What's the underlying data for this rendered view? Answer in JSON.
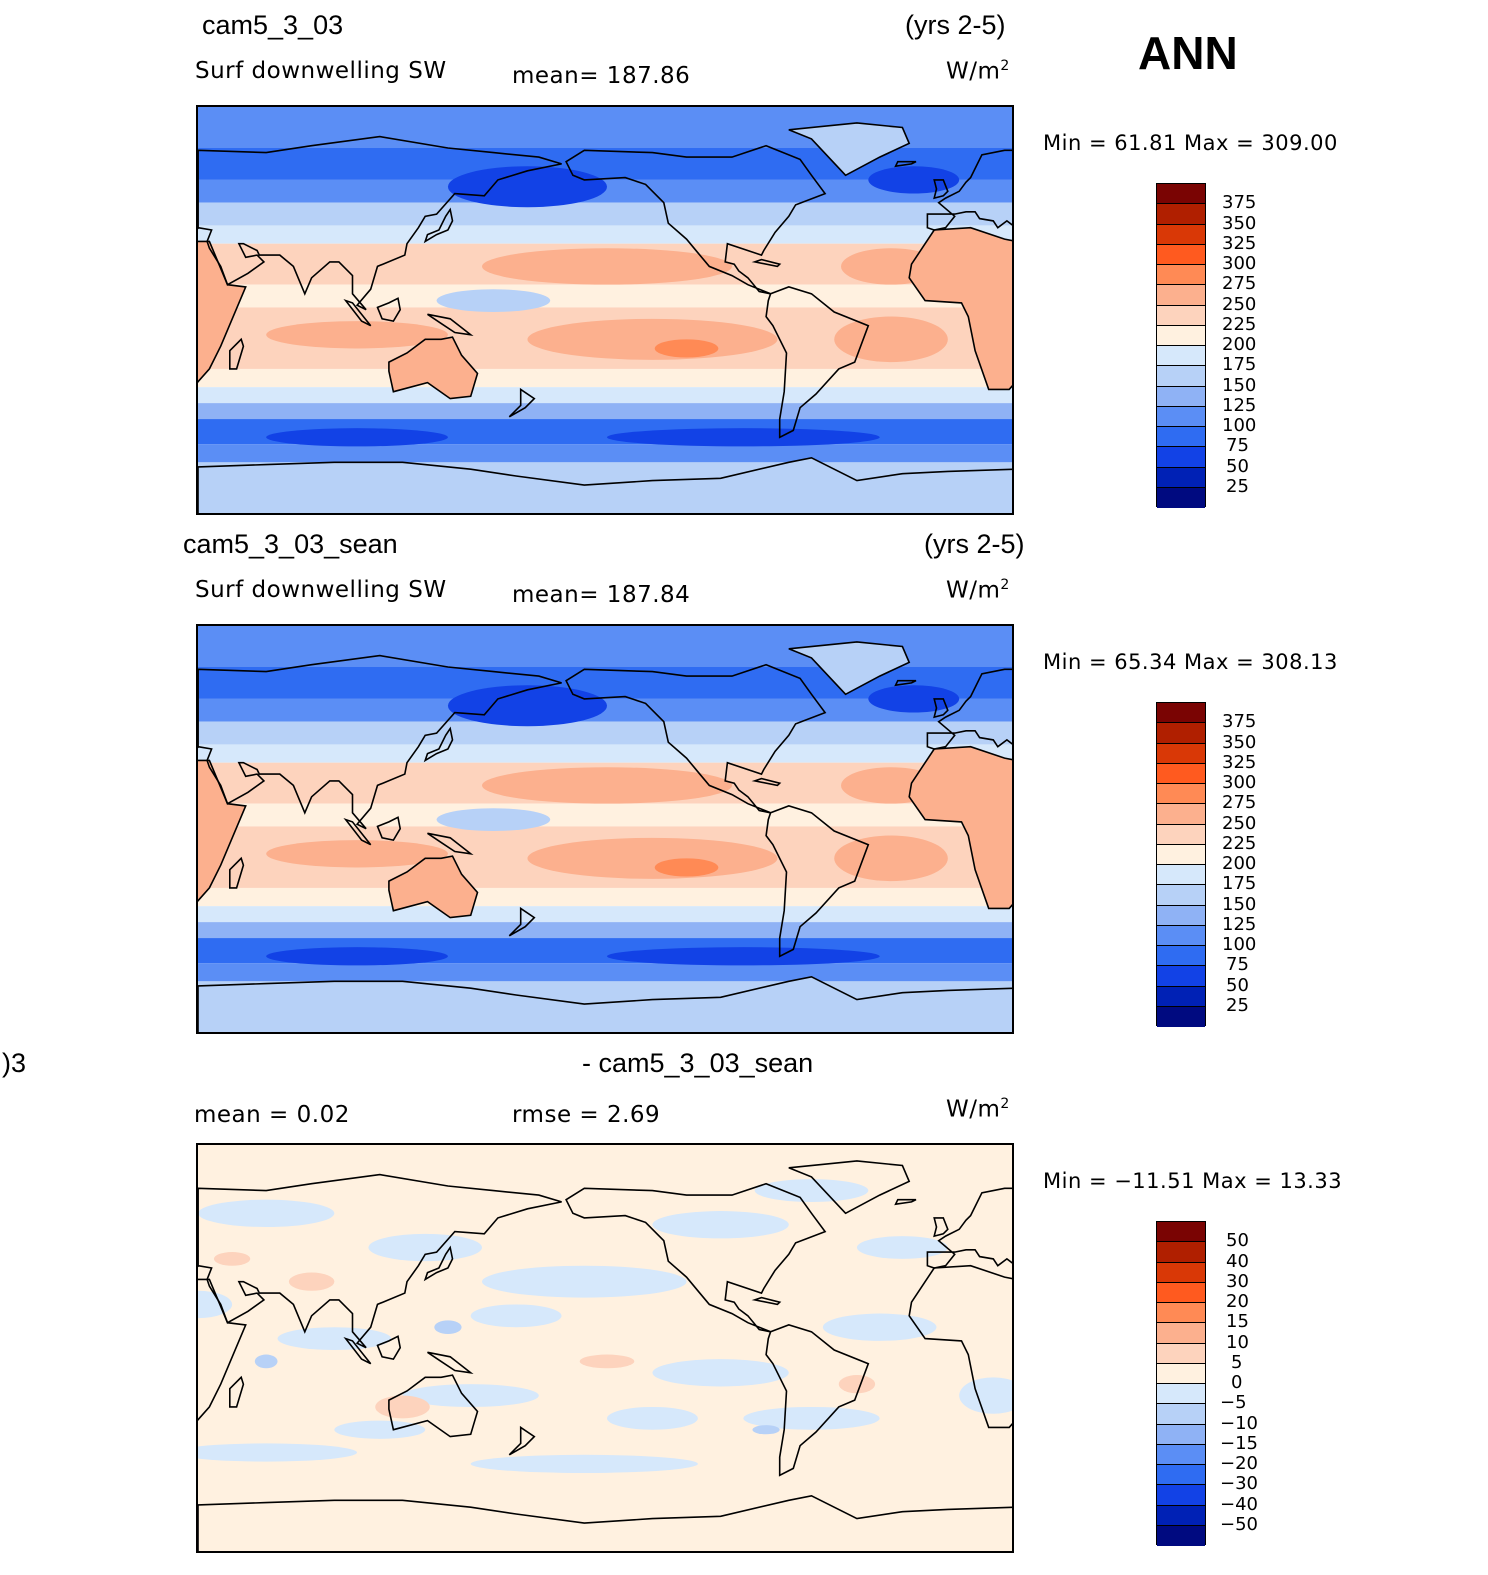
{
  "season": "ANN",
  "panels": [
    {
      "case": "cam5_3_03",
      "years": "(yrs 2-5)",
      "variable": "Surf downwelling SW",
      "stat1": "mean=  187.86",
      "stat2": "",
      "units_base": "W/m",
      "units_sup": "2",
      "minmax": "Min =   61.81  Max  =  309.00",
      "cbar_labels": [
        "375",
        "350",
        "325",
        "300",
        "275",
        "250",
        "225",
        "200",
        "175",
        "150",
        "125",
        "100",
        "75",
        "50",
        "25"
      ],
      "cbar_colors": [
        "#7a0403",
        "#b01f00",
        "#d93806",
        "#ff5a1f",
        "#ff8a55",
        "#fcb08e",
        "#fdd3bd",
        "#fff1e0",
        "#d6e8fb",
        "#b7d1f7",
        "#8fb2f5",
        "#5b8ef5",
        "#2f6cf2",
        "#1242e6",
        "#0021b5",
        "#000a80"
      ],
      "minmax_values": {
        "min": 61.81,
        "max": 309.0,
        "mean": 187.86
      }
    },
    {
      "case": "cam5_3_03_sean",
      "years": "(yrs 2-5)",
      "variable": "Surf downwelling SW",
      "stat1": "mean=  187.84",
      "stat2": "",
      "units_base": "W/m",
      "units_sup": "2",
      "minmax": "Min =   65.34  Max  =  308.13",
      "cbar_labels": [
        "375",
        "350",
        "325",
        "300",
        "275",
        "250",
        "225",
        "200",
        "175",
        "150",
        "125",
        "100",
        "75",
        "50",
        "25"
      ],
      "cbar_colors": [
        "#7a0403",
        "#b01f00",
        "#d93806",
        "#ff5a1f",
        "#ff8a55",
        "#fcb08e",
        "#fdd3bd",
        "#fff1e0",
        "#d6e8fb",
        "#b7d1f7",
        "#8fb2f5",
        "#5b8ef5",
        "#2f6cf2",
        "#1242e6",
        "#0021b5",
        "#000a80"
      ],
      "minmax_values": {
        "min": 65.34,
        "max": 308.13,
        "mean": 187.84
      }
    },
    {
      "case": "- cam5_3_03_sean",
      "case_cut": ")3",
      "years": "",
      "variable": "",
      "stat1": "mean  =     0.02",
      "stat2": "rmse  =     2.69",
      "units_base": "W/m",
      "units_sup": "2",
      "minmax": "Min  = −11.51  Max  =    13.33",
      "cbar_labels": [
        "50",
        "40",
        "30",
        "20",
        "15",
        "10",
        "5",
        "0",
        "−5",
        "−10",
        "−15",
        "−20",
        "−30",
        "−40",
        "−50"
      ],
      "cbar_colors": [
        "#7a0403",
        "#b01f00",
        "#d93806",
        "#ff5a1f",
        "#ff8a55",
        "#fcb08e",
        "#fdd3bd",
        "#fff1e0",
        "#d6e8fb",
        "#b7d1f7",
        "#8fb2f5",
        "#5b8ef5",
        "#2f6cf2",
        "#1242e6",
        "#0021b5",
        "#000a80"
      ],
      "minmax_values": {
        "min": -11.51,
        "max": 13.33,
        "mean": 0.02,
        "rmse": 2.69
      }
    }
  ]
}
